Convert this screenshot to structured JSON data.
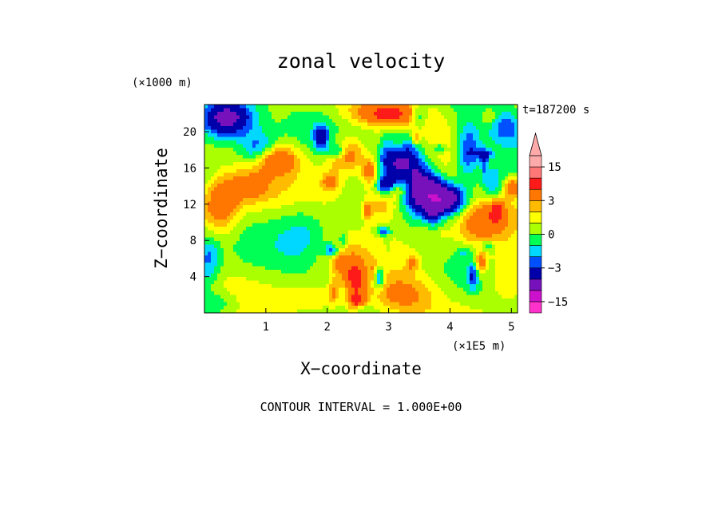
{
  "chart_data": {
    "type": "heatmap",
    "title": "zonal velocity",
    "xlabel": "X−coordinate",
    "ylabel": "Z−coordinate",
    "x_scale_label": "(×1E5 m)",
    "y_scale_label": "(×1000 m)",
    "time_label": "t=187200 s",
    "footer": "CONTOUR INTERVAL = 1.000E+00",
    "xlim": [
      0,
      5.1
    ],
    "ylim": [
      0,
      23
    ],
    "x_ticks": [
      "1",
      "2",
      "3",
      "4",
      "5"
    ],
    "x_tick_values": [
      1,
      2,
      3,
      4,
      5
    ],
    "y_ticks": [
      "4",
      "8",
      "12",
      "16",
      "20"
    ],
    "y_tick_values": [
      4,
      8,
      12,
      16,
      20
    ],
    "colorbar": {
      "labels": [
        "15",
        "3",
        "0",
        "−3",
        "−15"
      ],
      "label_values": [
        15,
        3,
        0,
        -3,
        -15
      ],
      "levels": [
        {
          "lo": -20,
          "hi": -15,
          "color": "#ff33cc"
        },
        {
          "lo": -15,
          "hi": -10,
          "color": "#cc11cc"
        },
        {
          "lo": -10,
          "hi": -5,
          "color": "#7711bb"
        },
        {
          "lo": -5,
          "hi": -3,
          "color": "#0000aa"
        },
        {
          "lo": -3,
          "hi": -2,
          "color": "#0050ff"
        },
        {
          "lo": -2,
          "hi": -1,
          "color": "#00d8ff"
        },
        {
          "lo": -1,
          "hi": 0,
          "color": "#00ff55"
        },
        {
          "lo": 0,
          "hi": 1,
          "color": "#aaff00"
        },
        {
          "lo": 1,
          "hi": 2,
          "color": "#ffff00"
        },
        {
          "lo": 2,
          "hi": 3,
          "color": "#ffbb00"
        },
        {
          "lo": 3,
          "hi": 5,
          "color": "#ff7700"
        },
        {
          "lo": 5,
          "hi": 10,
          "color": "#ff1a1a"
        },
        {
          "lo": 10,
          "hi": 15,
          "color": "#ff7777"
        },
        {
          "lo": 15,
          "hi": 20,
          "color": "#ffaaaa"
        }
      ],
      "extend_top_color": "#ffaaaa"
    }
  }
}
